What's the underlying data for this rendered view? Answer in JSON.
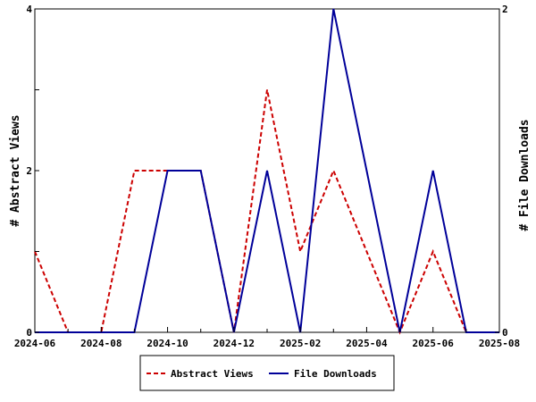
{
  "chart_data": {
    "type": "line",
    "x": [
      "2024-06",
      "2024-07",
      "2024-08",
      "2024-09",
      "2024-10",
      "2024-11",
      "2024-12",
      "2025-01",
      "2025-02",
      "2025-03",
      "2025-04",
      "2025-05",
      "2025-06",
      "2025-07",
      "2025-08"
    ],
    "x_tick_labels": [
      "2024-06",
      "2024-08",
      "2024-10",
      "2024-12",
      "2025-02",
      "2025-04",
      "2025-06",
      "2025-08"
    ],
    "series": [
      {
        "name": "Abstract Views",
        "axis": "left",
        "color": "#cc0000",
        "dash": "dashed",
        "values": [
          1,
          0,
          0,
          2,
          2,
          2,
          0,
          3,
          1,
          2,
          1,
          0,
          1,
          0,
          0
        ]
      },
      {
        "name": "File Downloads",
        "axis": "right",
        "color": "#000099",
        "dash": "solid",
        "values": [
          0,
          0,
          0,
          0,
          1,
          1,
          0,
          1,
          0,
          2,
          1,
          0,
          1,
          0,
          0
        ]
      }
    ],
    "ylabel": "# Abstract Views",
    "y2label": "# File Downloads",
    "ylim": [
      0,
      4
    ],
    "y2lim": [
      0,
      2
    ],
    "y_ticks": [
      "0",
      "2",
      "4"
    ],
    "y2_ticks": [
      "0",
      "2"
    ],
    "grid": false,
    "legend_position": "bottom-center"
  }
}
